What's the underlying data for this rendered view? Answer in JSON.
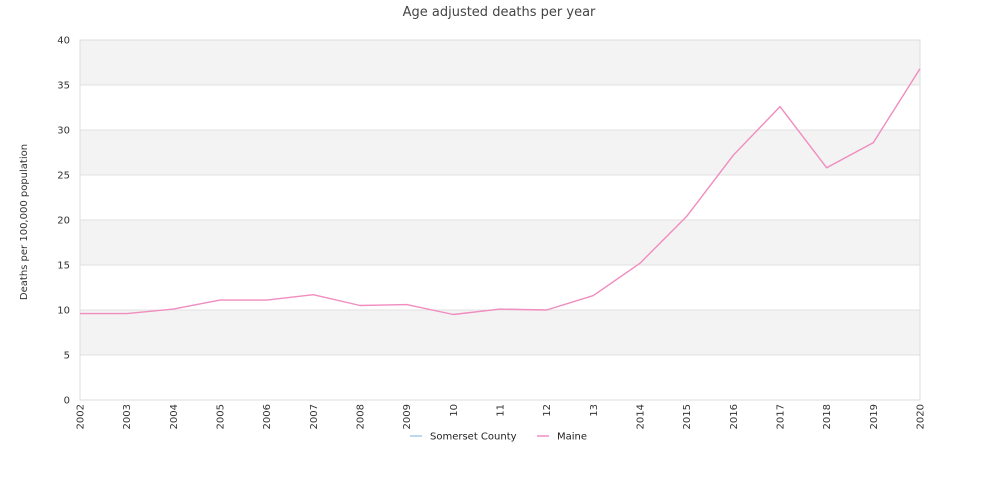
{
  "chart_data": {
    "type": "line",
    "title": "Age adjusted deaths per year",
    "xlabel": "",
    "ylabel": "Deaths per 100,000 population",
    "x": [
      "2002",
      "2003",
      "2004",
      "2005",
      "2006",
      "2007",
      "2008",
      "2009",
      "2010",
      "2011",
      "2012",
      "2013",
      "2014",
      "2015",
      "2016",
      "2017",
      "2018",
      "2019",
      "2020"
    ],
    "x_tick_labels": [
      "2002",
      "2003",
      "2004",
      "2005",
      "2006",
      "2007",
      "2008",
      "2009",
      "10",
      "11",
      "12",
      "13",
      "2014",
      "2015",
      "2016",
      "2017",
      "2018",
      "2019",
      "2020"
    ],
    "ylim": [
      0,
      40
    ],
    "y_ticks": [
      0,
      5,
      10,
      15,
      20,
      25,
      30,
      35,
      40
    ],
    "grid": "horizontal alternating bands",
    "legend_position": "bottom-center",
    "series": [
      {
        "name": "Somerset County",
        "color": "#a8c8e8",
        "values": [
          null,
          null,
          null,
          null,
          null,
          null,
          null,
          null,
          null,
          null,
          null,
          null,
          null,
          null,
          null,
          null,
          null,
          null,
          null
        ]
      },
      {
        "name": "Maine",
        "color": "#f08cbf",
        "values": [
          9.6,
          9.6,
          10.1,
          11.1,
          11.1,
          11.7,
          10.5,
          10.6,
          9.5,
          10.1,
          10.0,
          11.6,
          15.2,
          20.4,
          27.2,
          32.6,
          25.8,
          28.6,
          36.8
        ]
      }
    ]
  }
}
